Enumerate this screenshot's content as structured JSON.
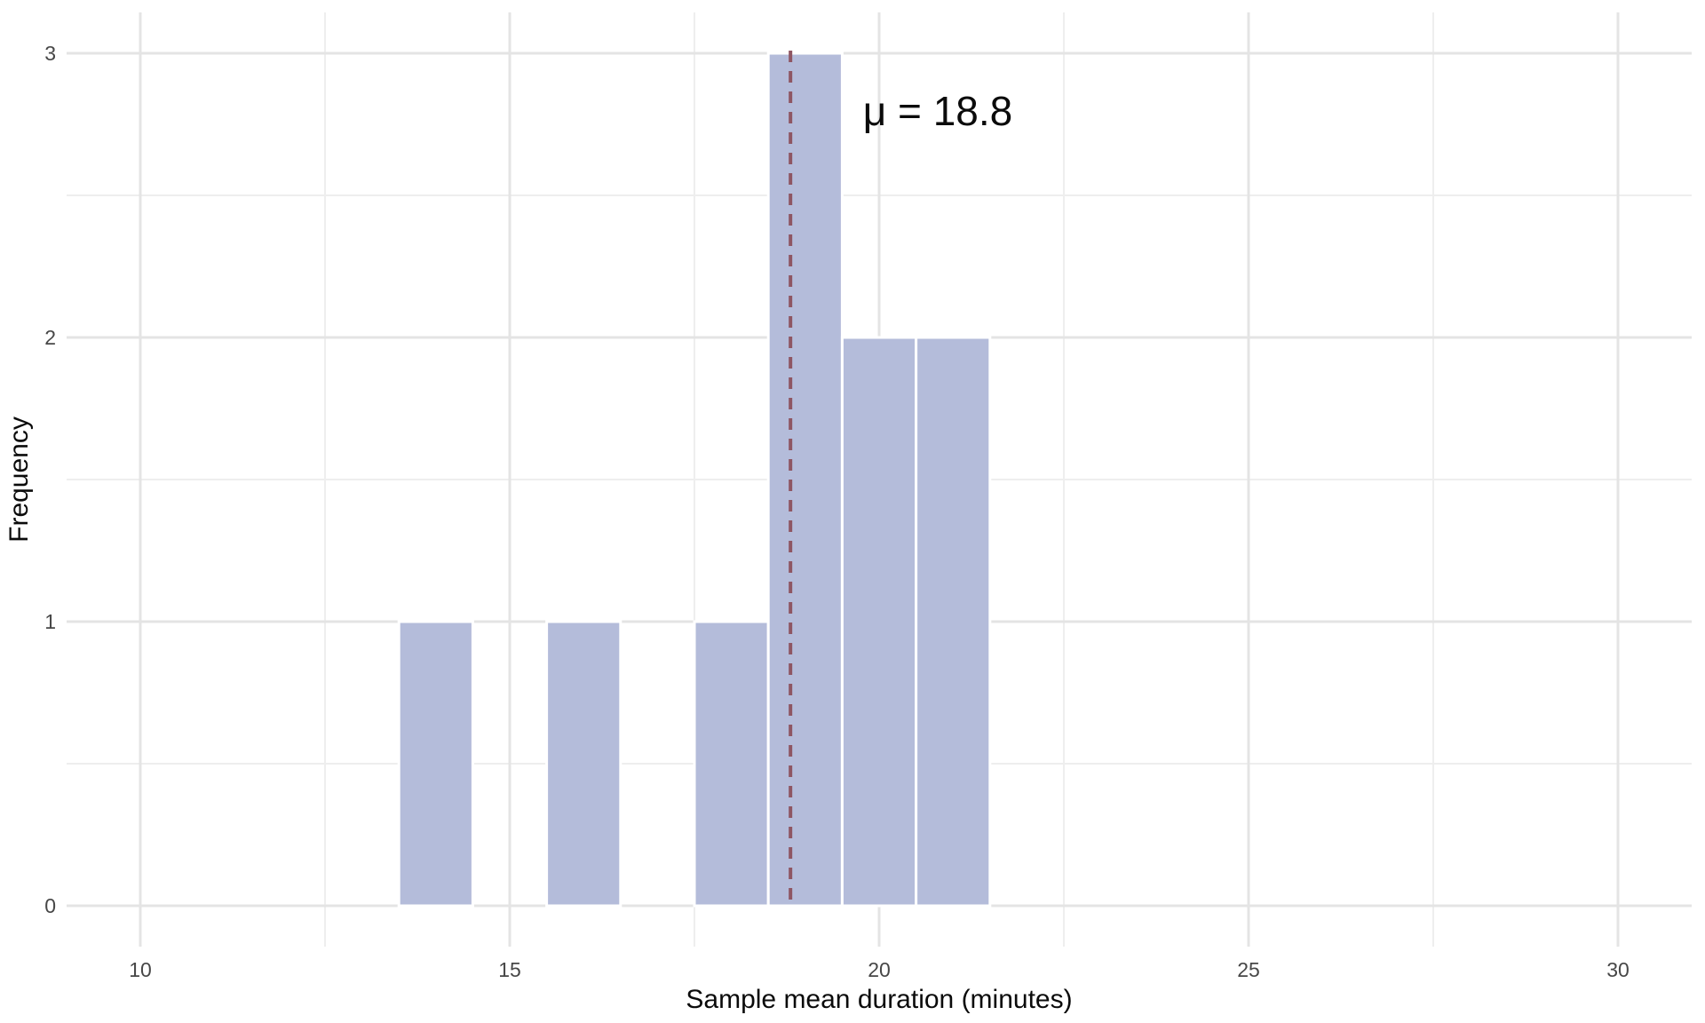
{
  "chart_data": {
    "type": "histogram",
    "title": "",
    "xlabel": "Sample mean duration (minutes)",
    "ylabel": "Frequency",
    "bins": [
      {
        "x0": 13.5,
        "x1": 14.5,
        "count": 1
      },
      {
        "x0": 15.5,
        "x1": 16.5,
        "count": 1
      },
      {
        "x0": 17.5,
        "x1": 18.5,
        "count": 1
      },
      {
        "x0": 18.5,
        "x1": 19.5,
        "count": 3
      },
      {
        "x0": 19.5,
        "x1": 20.5,
        "count": 2
      },
      {
        "x0": 20.5,
        "x1": 21.5,
        "count": 2
      }
    ],
    "mean_line": {
      "value": 18.8,
      "label": "μ = 18.8",
      "style": "dashed"
    },
    "x_ticks": [
      10,
      15,
      20,
      25,
      30
    ],
    "x_minor_ticks": [
      12.5,
      17.5,
      22.5,
      27.5
    ],
    "y_ticks": [
      0,
      1,
      2,
      3
    ],
    "y_minor_ticks": [
      0.5,
      1.5,
      2.5
    ],
    "xlim": [
      9,
      31
    ],
    "ylim": [
      0,
      3.15
    ],
    "grid": "major+minor",
    "legend_position": "none",
    "colors": {
      "bar_fill": "#b4bcda",
      "bar_stroke": "#ffffff",
      "mean_line": "#8e5663",
      "grid_major": "#e4e4e4",
      "grid_minor": "#eeeeee",
      "tick_text": "#474747",
      "title_text": "#0b0b0b",
      "background": "#ffffff"
    }
  }
}
